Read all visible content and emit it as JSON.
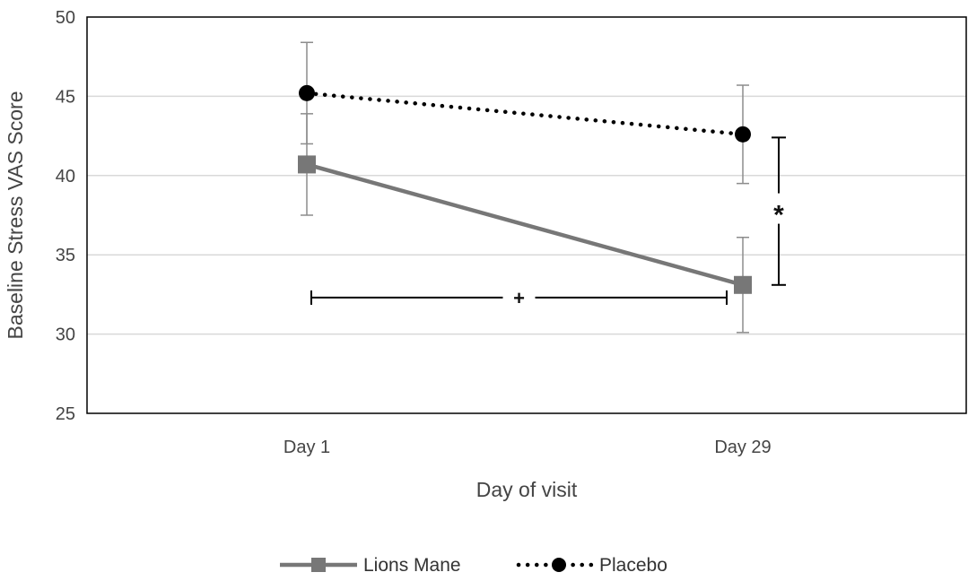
{
  "chart_data": {
    "type": "line",
    "title": "",
    "xlabel": "Day of visit",
    "ylabel": "Baseline Stress VAS Score",
    "categories": [
      "Day 1",
      "Day 29"
    ],
    "ylim": [
      25,
      50
    ],
    "yticks": [
      25,
      30,
      35,
      40,
      45,
      50
    ],
    "grid": true,
    "legend_position": "bottom",
    "series": [
      {
        "name": "Lions Mane",
        "values": [
          40.7,
          33.1
        ],
        "error": [
          3.2,
          3.0
        ],
        "color": "#777777",
        "line_style": "solid",
        "marker": "square"
      },
      {
        "name": "Placebo",
        "values": [
          45.2,
          42.6
        ],
        "error": [
          3.2,
          3.1
        ],
        "color": "#000000",
        "line_style": "dotted",
        "marker": "circle"
      }
    ],
    "annotations": [
      {
        "symbol": "+",
        "type": "horizontal-bracket",
        "from": "Day 1",
        "to": "Day 29",
        "y": 32.3
      },
      {
        "symbol": "*",
        "type": "vertical-bracket",
        "at": "Day 29",
        "y_from": 33.1,
        "y_to": 42.4
      }
    ]
  }
}
